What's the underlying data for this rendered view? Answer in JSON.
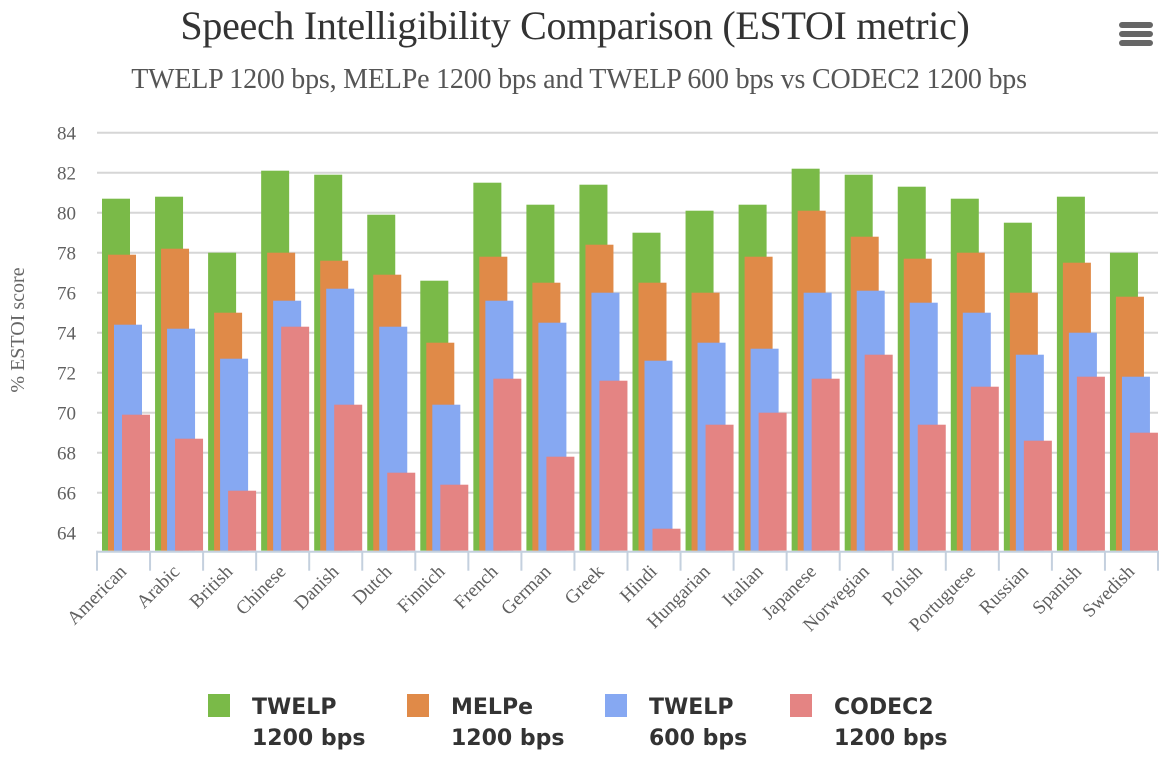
{
  "chart_data": {
    "type": "bar",
    "title": "Speech Intelligibility Comparison (ESTOI metric)",
    "subtitle": "TWELP 1200 bps, MELPe 1200 bps and TWELP 600 bps vs CODEC2 1200 bps",
    "xlabel": "",
    "ylabel": "% ESTOI score",
    "ylim": [
      63.1,
      84
    ],
    "yticks": [
      64,
      66,
      68,
      70,
      72,
      74,
      76,
      78,
      80,
      82,
      84
    ],
    "grid": true,
    "legend_position": "bottom",
    "categories": [
      "American",
      "Arabic",
      "British",
      "Chinese",
      "Danish",
      "Dutch",
      "Finnich",
      "French",
      "German",
      "Greek",
      "Hindi",
      "Hungarian",
      "Italian",
      "Japanese",
      "Norwegian",
      "Polish",
      "Portuguese",
      "Russian",
      "Spanish",
      "Swedish"
    ],
    "series": [
      {
        "name": "TWELP 1200 bps",
        "line1": "TWELP",
        "line2": "1200 bps",
        "color": "#7aba48",
        "values": [
          80.7,
          80.8,
          78.0,
          82.1,
          81.9,
          79.9,
          76.6,
          81.5,
          80.4,
          81.4,
          79.0,
          80.1,
          80.4,
          82.2,
          81.9,
          81.3,
          80.7,
          79.5,
          80.8,
          78.0
        ]
      },
      {
        "name": "MELPe 1200 bps",
        "line1": "MELPe",
        "line2": "1200 bps",
        "color": "#e08a48",
        "values": [
          77.9,
          78.2,
          75.0,
          78.0,
          77.6,
          76.9,
          73.5,
          77.8,
          76.5,
          78.4,
          76.5,
          76.0,
          77.8,
          80.1,
          78.8,
          77.7,
          78.0,
          76.0,
          77.5,
          75.8
        ]
      },
      {
        "name": "TWELP 600 bps",
        "line1": "TWELP",
        "line2": "600 bps",
        "color": "#86a8f2",
        "values": [
          74.4,
          74.2,
          72.7,
          75.6,
          76.2,
          74.3,
          70.4,
          75.6,
          74.5,
          76.0,
          72.6,
          73.5,
          73.2,
          76.0,
          76.1,
          75.5,
          75.0,
          72.9,
          74.0,
          71.8
        ]
      },
      {
        "name": "CODEC2 1200 bps",
        "line1": "CODEC2",
        "line2": "1200 bps",
        "color": "#e48483",
        "values": [
          69.9,
          68.7,
          66.1,
          74.3,
          70.4,
          67.0,
          66.4,
          71.7,
          67.8,
          71.6,
          64.2,
          69.4,
          70.0,
          71.7,
          72.9,
          69.4,
          71.3,
          68.6,
          71.8,
          69.0
        ]
      }
    ]
  },
  "menu": {
    "icon": "hamburger-menu-icon"
  }
}
